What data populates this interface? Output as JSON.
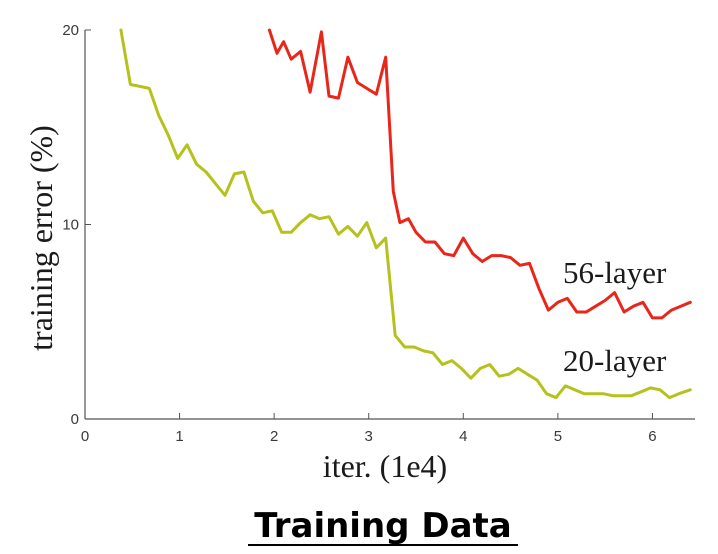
{
  "chart_data": {
    "type": "line",
    "title": "",
    "caption": "Training Data",
    "xlabel": "iter. (1e4)",
    "ylabel": "training error (%)",
    "xlim": [
      0,
      6.45
    ],
    "ylim": [
      0,
      20
    ],
    "xticks": [
      0,
      1,
      2,
      3,
      4,
      5,
      6
    ],
    "yticks": [
      0,
      10,
      20
    ],
    "grid": false,
    "series": [
      {
        "name": "56-layer",
        "color": "#e8261a",
        "x": [
          1.95,
          2.03,
          2.1,
          2.18,
          2.28,
          2.38,
          2.5,
          2.58,
          2.68,
          2.78,
          2.88,
          2.98,
          3.08,
          3.18,
          3.26,
          3.33,
          3.42,
          3.5,
          3.6,
          3.7,
          3.8,
          3.9,
          4.0,
          4.1,
          4.2,
          4.3,
          4.4,
          4.5,
          4.6,
          4.7,
          4.8,
          4.9,
          5.0,
          5.1,
          5.2,
          5.3,
          5.4,
          5.5,
          5.6,
          5.7,
          5.8,
          5.9,
          6.0,
          6.1,
          6.2,
          6.3,
          6.4
        ],
        "y": [
          20.0,
          18.8,
          19.4,
          18.5,
          18.9,
          16.8,
          19.9,
          16.6,
          16.5,
          18.6,
          17.3,
          17.0,
          16.7,
          18.6,
          11.7,
          10.1,
          10.3,
          9.6,
          9.1,
          9.1,
          8.5,
          8.4,
          9.3,
          8.5,
          8.1,
          8.4,
          8.4,
          8.3,
          7.9,
          8.0,
          6.7,
          5.6,
          6.0,
          6.2,
          5.5,
          5.5,
          5.8,
          6.1,
          6.5,
          5.5,
          5.8,
          6.0,
          5.2,
          5.2,
          5.6,
          5.8,
          6.0
        ]
      },
      {
        "name": "20-layer",
        "color": "#b5c21d",
        "x": [
          0.38,
          0.48,
          0.58,
          0.68,
          0.78,
          0.88,
          0.98,
          1.08,
          1.18,
          1.28,
          1.38,
          1.48,
          1.58,
          1.68,
          1.78,
          1.88,
          1.98,
          2.08,
          2.18,
          2.28,
          2.38,
          2.48,
          2.58,
          2.68,
          2.78,
          2.88,
          2.98,
          3.08,
          3.18,
          3.28,
          3.38,
          3.48,
          3.58,
          3.68,
          3.78,
          3.88,
          3.98,
          4.08,
          4.18,
          4.28,
          4.38,
          4.48,
          4.58,
          4.68,
          4.78,
          4.88,
          4.98,
          5.08,
          5.18,
          5.28,
          5.38,
          5.48,
          5.58,
          5.68,
          5.78,
          5.88,
          5.98,
          6.08,
          6.18,
          6.28,
          6.4
        ],
        "y": [
          20.0,
          17.2,
          17.1,
          17.0,
          15.6,
          14.6,
          13.4,
          14.1,
          13.1,
          12.7,
          12.1,
          11.5,
          12.6,
          12.7,
          11.2,
          10.6,
          10.7,
          9.6,
          9.6,
          10.1,
          10.5,
          10.3,
          10.4,
          9.5,
          9.9,
          9.4,
          10.1,
          8.8,
          9.3,
          4.3,
          3.7,
          3.7,
          3.5,
          3.4,
          2.8,
          3.0,
          2.6,
          2.1,
          2.6,
          2.8,
          2.2,
          2.3,
          2.6,
          2.3,
          2.0,
          1.3,
          1.1,
          1.7,
          1.5,
          1.3,
          1.3,
          1.3,
          1.2,
          1.2,
          1.2,
          1.4,
          1.6,
          1.5,
          1.1,
          1.3,
          1.5
        ]
      }
    ]
  }
}
